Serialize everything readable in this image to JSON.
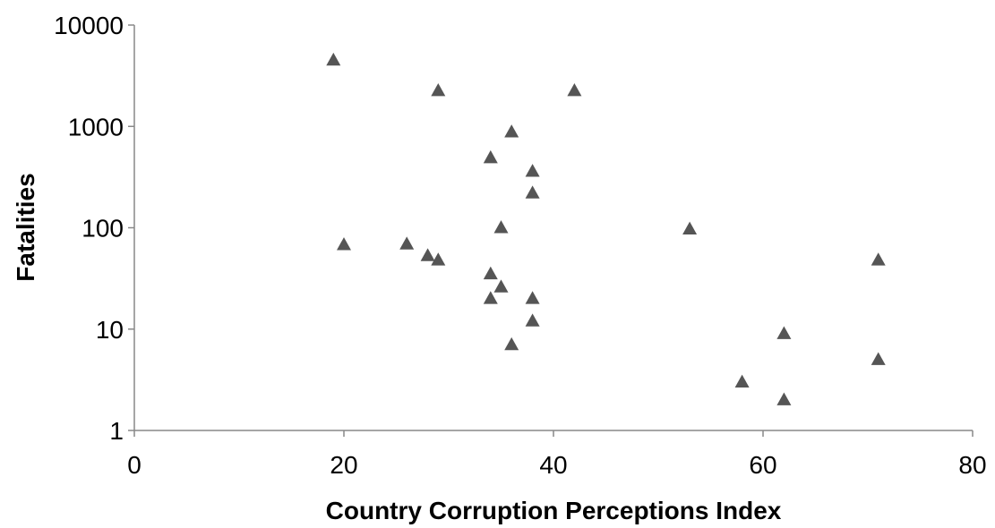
{
  "chart_data": {
    "type": "scatter",
    "xlabel": "Country Corruption Perceptions Index",
    "ylabel": "Fatalities",
    "xlim": [
      0,
      80
    ],
    "ylim": [
      1,
      10000
    ],
    "yscale": "log",
    "grid": false,
    "x_ticks": [
      0,
      20,
      40,
      60,
      80
    ],
    "y_ticks": [
      1,
      10,
      100,
      1000,
      10000
    ],
    "x_tick_labels": [
      "0",
      "20",
      "40",
      "60",
      "80"
    ],
    "y_tick_labels": [
      "1",
      "10",
      "100",
      "1000",
      "10000"
    ],
    "marker": "triangle",
    "marker_color": "#555555",
    "axis_color": "#888888",
    "series": [
      {
        "points": [
          {
            "x": 19,
            "y": 4500
          },
          {
            "x": 29,
            "y": 2250
          },
          {
            "x": 42,
            "y": 2250
          },
          {
            "x": 36,
            "y": 880
          },
          {
            "x": 34,
            "y": 490
          },
          {
            "x": 38,
            "y": 360
          },
          {
            "x": 38,
            "y": 220
          },
          {
            "x": 35,
            "y": 100
          },
          {
            "x": 53,
            "y": 97
          },
          {
            "x": 20,
            "y": 68
          },
          {
            "x": 26,
            "y": 69
          },
          {
            "x": 28,
            "y": 53
          },
          {
            "x": 29,
            "y": 48
          },
          {
            "x": 71,
            "y": 48
          },
          {
            "x": 34,
            "y": 35
          },
          {
            "x": 35,
            "y": 26
          },
          {
            "x": 34,
            "y": 20
          },
          {
            "x": 38,
            "y": 20
          },
          {
            "x": 38,
            "y": 12
          },
          {
            "x": 62,
            "y": 9
          },
          {
            "x": 36,
            "y": 7
          },
          {
            "x": 71,
            "y": 5
          },
          {
            "x": 58,
            "y": 3
          },
          {
            "x": 62,
            "y": 2
          }
        ]
      }
    ]
  }
}
